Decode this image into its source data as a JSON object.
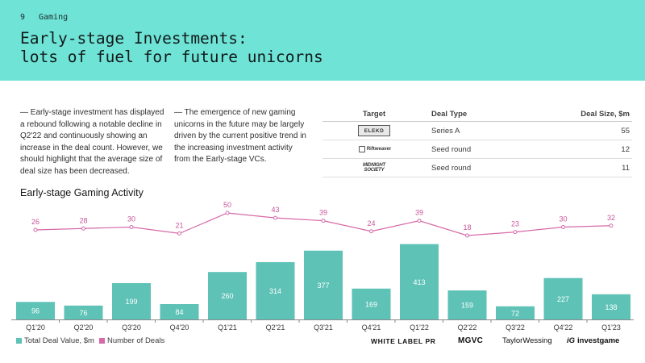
{
  "header": {
    "page_number": "9",
    "section": "Gaming",
    "title_line1": "Early-stage Investments:",
    "title_line2": "lots of fuel for future unicorns"
  },
  "paragraphs": {
    "p1": "— Early-stage investment has displayed a rebound following a notable decline in Q2'22 and continuously showing an increase in the deal count. However, we should highlight that the average size of deal size has been decreased.",
    "p2": "— The emergence of new gaming unicorns in the future may be largely driven by the current positive trend in the increasing investment activity from the Early-stage VCs."
  },
  "deal_table": {
    "headers": [
      "Target",
      "Deal Type",
      "Deal Size, $m"
    ],
    "rows": [
      {
        "logo": "ELEKD",
        "deal_type": "Series A",
        "deal_size": "55"
      },
      {
        "logo": "Riftweaver",
        "deal_type": "Seed round",
        "deal_size": "12"
      },
      {
        "logo": "MIDNIGHT SOCIETY",
        "deal_type": "Seed round",
        "deal_size": "11"
      }
    ]
  },
  "chart_title": "Early-stage Gaming Activity",
  "chart_data": {
    "type": "bar",
    "title": "Early-stage Gaming Activity",
    "categories": [
      "Q1'20",
      "Q2'20",
      "Q3'20",
      "Q4'20",
      "Q1'21",
      "Q2'21",
      "Q3'21",
      "Q4'21",
      "Q1'22",
      "Q2'22",
      "Q3'22",
      "Q4'22",
      "Q1'23"
    ],
    "series": [
      {
        "name": "Total Deal Value, $m",
        "type": "bar",
        "color": "#5ec2b6",
        "values": [
          96,
          76,
          199,
          84,
          260,
          314,
          377,
          169,
          413,
          159,
          72,
          227,
          138
        ]
      },
      {
        "name": "Number of Deals",
        "type": "line",
        "color": "#d669a8",
        "values": [
          26,
          28,
          30,
          21,
          50,
          43,
          39,
          24,
          39,
          18,
          23,
          30,
          32
        ]
      }
    ],
    "grid": false,
    "legend": "bottom-left"
  },
  "legend": {
    "items": [
      {
        "label": "Total Deal Value, $m",
        "color": "#5ec2b6"
      },
      {
        "label": "Number of Deals",
        "color": "#d669a8"
      }
    ]
  },
  "brands": {
    "b1": "WHITE LABEL PR",
    "b2": "MGVC",
    "b3": "TaylorWessing",
    "b4_mark": "iG",
    "b4": "investgame"
  },
  "colors": {
    "header_bg": "#6ee3d6",
    "bar": "#5ec2b6",
    "line": "#d669a8",
    "label_line": "#c9559a"
  }
}
